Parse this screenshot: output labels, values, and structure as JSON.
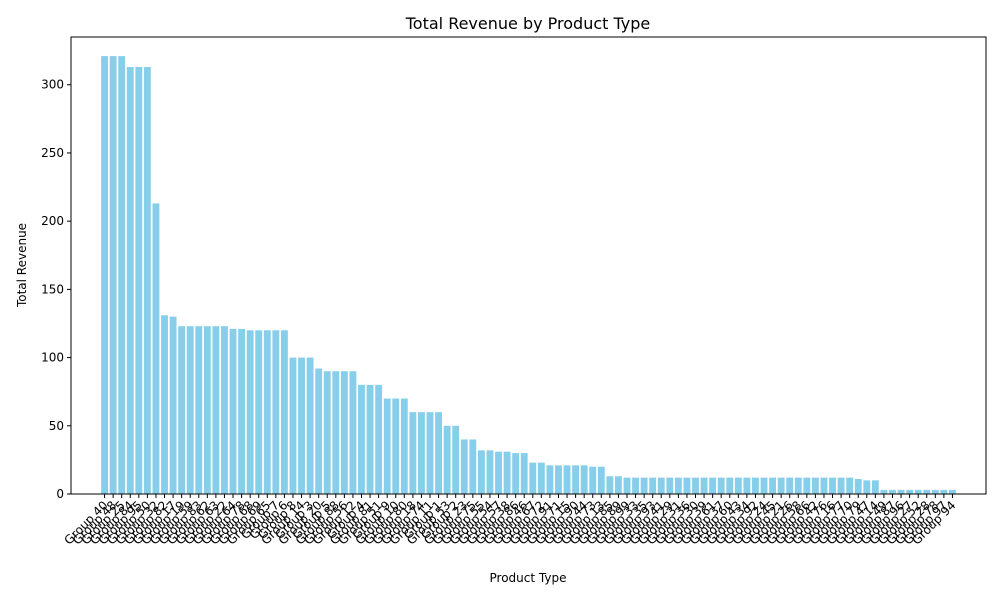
{
  "chart_data": {
    "type": "bar",
    "title": "Total Revenue by Product Type",
    "xlabel": "Product Type",
    "ylabel": "Total Revenue",
    "ylim": [
      0,
      335
    ],
    "yticks": [
      0,
      50,
      100,
      150,
      200,
      250,
      300
    ],
    "bar_color": "#87ceeb",
    "grid": false,
    "legend": "none",
    "categories": [
      "Group 40",
      "Group 48",
      "Group 25",
      "Group 84",
      "Group 95",
      "Group 50",
      "Group 32",
      "Group 82",
      "Group 17",
      "Group 19",
      "Group 59",
      "Group 83",
      "Group 62",
      "Group 63",
      "Group 22",
      "Group 64",
      "Group 78",
      "Group 68",
      "Group 69",
      "Group 65",
      "Group 7",
      "Group 6",
      "Group 8",
      "Group 14",
      "Group 3",
      "Group 20",
      "Group 5",
      "Group 88",
      "Group 56",
      "Group 12",
      "Group 4",
      "Group 81",
      "Group 51",
      "Group 9",
      "Group 10",
      "Group 80",
      "Group 18",
      "Group 74",
      "Group 11",
      "Group 1",
      "Group 53",
      "Group 2",
      "Group 23",
      "Group 75",
      "Group 55",
      "Group 54",
      "Group 57",
      "Group 38",
      "Group 86",
      "Group 46",
      "Group 67",
      "Group 72",
      "Group 91",
      "Group 71",
      "Group 15",
      "Group 90",
      "Group 44",
      "Group 73",
      "Group 13",
      "Group 85",
      "Group 89",
      "Group 99",
      "Group 33",
      "Group 35",
      "Group 93",
      "Group 41",
      "Group 29",
      "Group 31",
      "Group 36",
      "Group 30",
      "Group 39",
      "Group 61",
      "Group 37",
      "Group 60",
      "Group 43",
      "Group 34",
      "Group 92",
      "Group 24",
      "Group 45",
      "Group 21",
      "Group 26",
      "Group 58",
      "Group 66",
      "Group 42",
      "Group 76",
      "Group 16",
      "Group 77",
      "Group 70",
      "Group 79",
      "Group 47",
      "Group 14",
      "Group 49",
      "Group 87",
      "Group 96",
      "Group 27",
      "Group 52",
      "Group 28",
      "Group 78",
      "Group 97",
      "Group 94"
    ],
    "values": [
      321,
      321,
      321,
      313,
      313,
      313,
      213,
      131,
      130,
      123,
      123,
      123,
      123,
      123,
      123,
      121,
      121,
      120,
      120,
      120,
      120,
      120,
      100,
      100,
      100,
      92,
      90,
      90,
      90,
      90,
      80,
      80,
      80,
      70,
      70,
      70,
      60,
      60,
      60,
      60,
      50,
      50,
      40,
      40,
      32,
      32,
      31,
      31,
      30,
      30,
      23,
      23,
      21,
      21,
      21,
      21,
      21,
      20,
      20,
      13,
      13,
      12,
      12,
      12,
      12,
      12,
      12,
      12,
      12,
      12,
      12,
      12,
      12,
      12,
      12,
      12,
      12,
      12,
      12,
      12,
      12,
      12,
      12,
      12,
      12,
      12,
      12,
      12,
      11,
      10,
      10,
      3,
      3,
      3,
      3,
      3,
      3,
      3,
      3,
      3
    ]
  }
}
